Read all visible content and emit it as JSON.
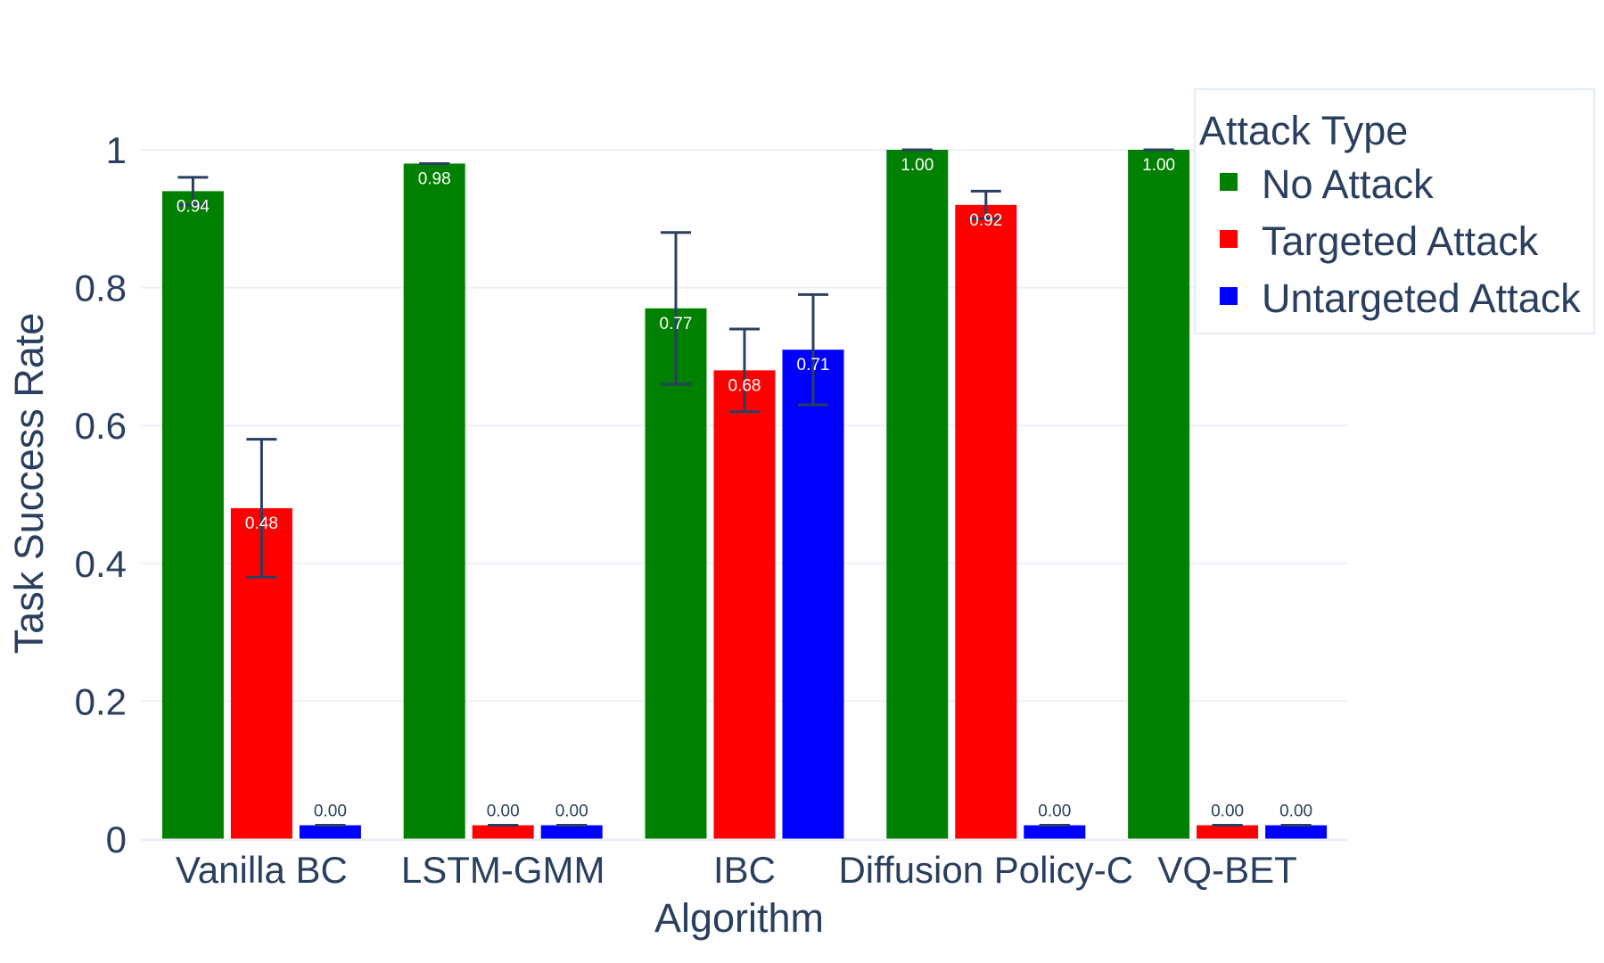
{
  "chart_data": {
    "type": "bar",
    "xlabel": "Algorithm",
    "ylabel": "Task Success Rate",
    "ylim": [
      0,
      1.05
    ],
    "yticks": [
      0,
      0.2,
      0.4,
      0.6,
      0.8,
      1
    ],
    "ytick_labels": [
      "0",
      "0.2",
      "0.4",
      "0.6",
      "0.8",
      "1"
    ],
    "grid": true,
    "categories": [
      "Vanilla BC",
      "LSTM-GMM",
      "IBC",
      "Diffusion Policy-C",
      "VQ-BET"
    ],
    "legend": {
      "title": "Attack Type",
      "placement": "top-right"
    },
    "series": [
      {
        "name": "No Attack",
        "color": "#008000",
        "values": [
          0.94,
          0.98,
          0.77,
          1.0,
          1.0
        ],
        "errors": [
          0.02,
          0.0,
          0.11,
          0.0,
          0.0
        ],
        "labels": [
          "0.94",
          "0.98",
          "0.77",
          "1.00",
          "1.00"
        ]
      },
      {
        "name": "Targeted Attack",
        "color": "#ff0000",
        "values": [
          0.48,
          0.0,
          0.68,
          0.92,
          0.0
        ],
        "errors": [
          0.1,
          0.0,
          0.06,
          0.02,
          0.0
        ],
        "labels": [
          "0.48",
          "0.00",
          "0.68",
          "0.92",
          "0.00"
        ]
      },
      {
        "name": "Untargeted Attack",
        "color": "#0000ff",
        "values": [
          0.0,
          0.0,
          0.71,
          0.0,
          0.0
        ],
        "errors": [
          0.0,
          0.0,
          0.08,
          0.0,
          0.0
        ],
        "labels": [
          "0.00",
          "0.00",
          "0.71",
          "0.00",
          "0.00"
        ]
      }
    ]
  }
}
